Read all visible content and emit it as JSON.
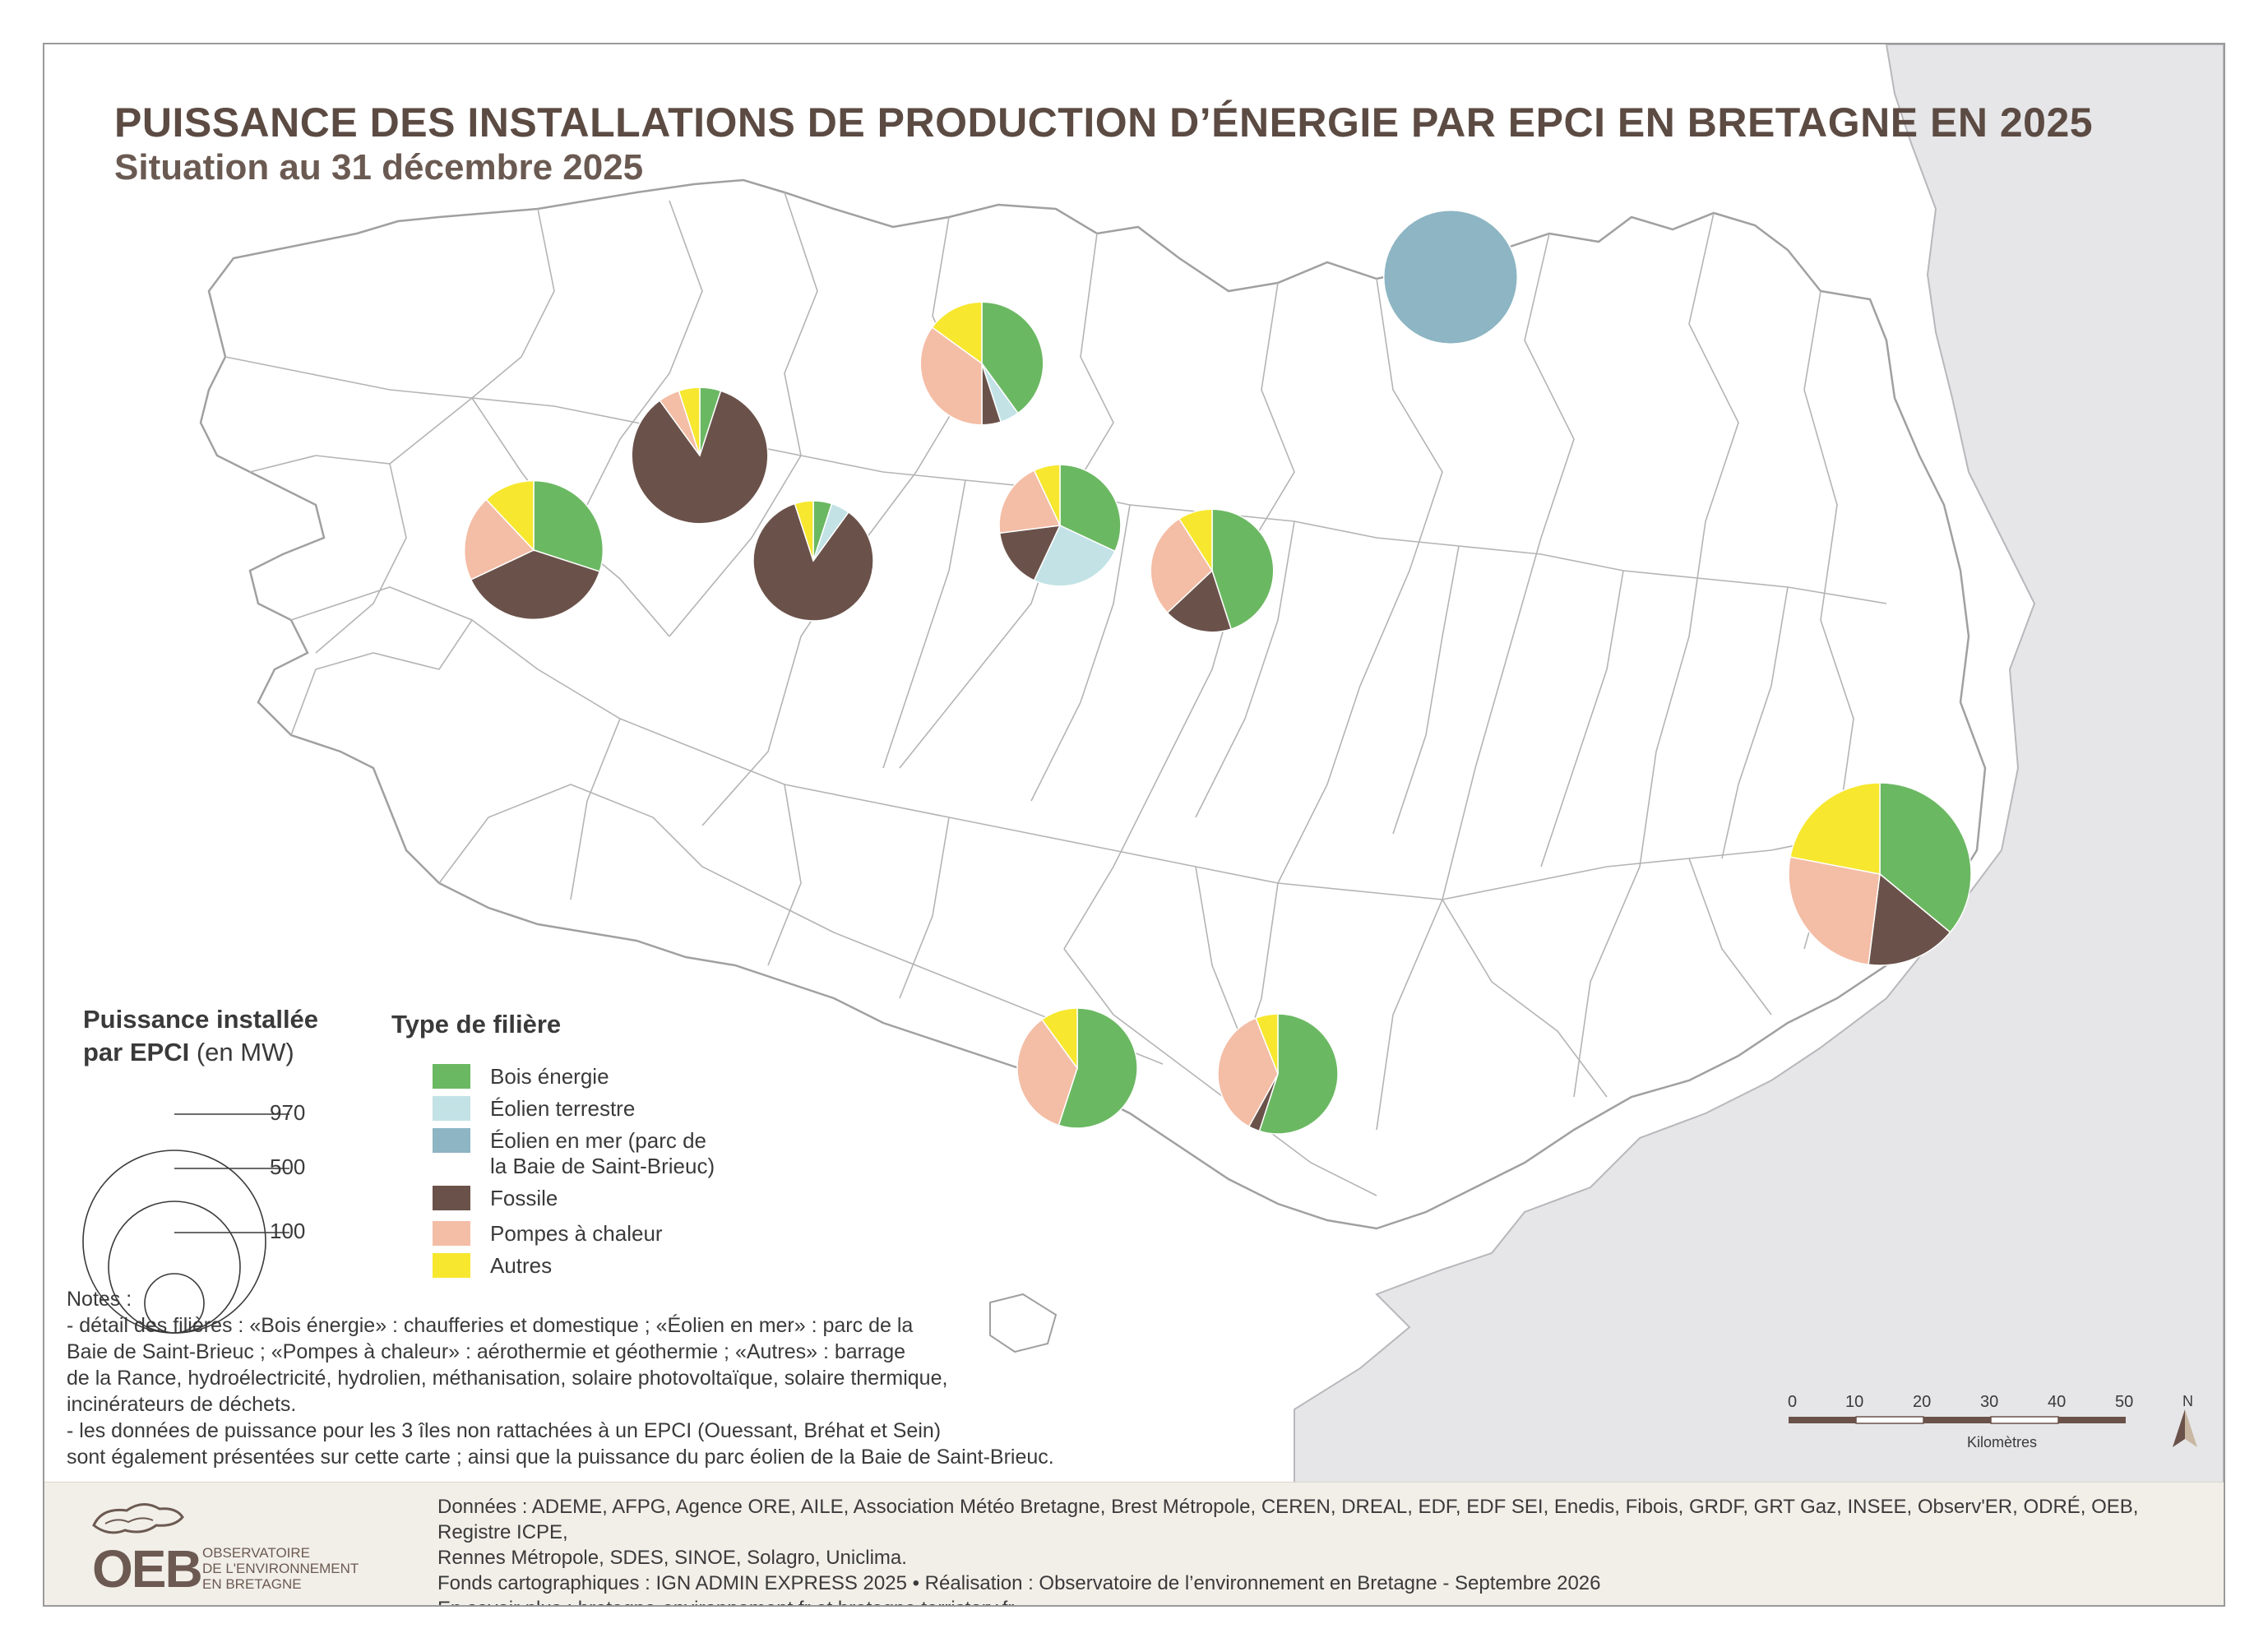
{
  "title": "PUISSANCE DES INSTALLATIONS DE PRODUCTION D’ÉNERGIE PAR EPCI EN BRETAGNE EN 2025",
  "subtitle": "Situation au 31 décembre 2025",
  "legend": {
    "size_title_line1": "Puissance installée",
    "size_title_line2_bold": "par EPCI",
    "size_title_line2_unit": "(en MW)",
    "sizes": [
      {
        "value": 970,
        "label": "970"
      },
      {
        "value": 500,
        "label": "500"
      },
      {
        "value": 100,
        "label": "100"
      }
    ],
    "type_title": "Type de filière",
    "types": [
      {
        "key": "bois",
        "line1": "Bois énergie",
        "line2": "",
        "color": "#6bb862"
      },
      {
        "key": "eolien",
        "line1": "Éolien terrestre",
        "line2": "",
        "color": "#c2e2e6"
      },
      {
        "key": "mer",
        "line1": "Éolien en mer (parc de",
        "line2": "la Baie de Saint-Brieuc)",
        "color": "#8db5c3"
      },
      {
        "key": "fossile",
        "line1": "Fossile",
        "line2": "",
        "color": "#6a524a"
      },
      {
        "key": "pac",
        "line1": "Pompes à chaleur",
        "line2": "",
        "color": "#f4bda6"
      },
      {
        "key": "autres",
        "line1": "Autres",
        "line2": "",
        "color": "#f7e72f"
      }
    ]
  },
  "notes": [
    "Notes :",
    "- détail des filières : «Bois énergie» : chaufferies et domestique ; «Éolien en mer» : parc de la",
    "Baie de Saint-Brieuc ;  «Pompes à chaleur» : aérothermie et géothermie ; «Autres» : barrage",
    "de la Rance, hydroélectricité, hydrolien, méthanisation, solaire photovoltaïque, solaire thermique,",
    "incinérateurs de déchets.",
    "- les données de puissance pour les 3 îles non rattachées à un EPCI (Ouessant, Bréhat et Sein)",
    "sont également présentées sur cette carte ; ainsi que la puissance du parc éolien de la Baie de Saint-Brieuc."
  ],
  "sources": [
    "Données : ADEME, AFPG, Agence ORE, AILE, Association Météo Bretagne, Brest Métropole, CEREN, DREAL, EDF, EDF SEI, Enedis, Fibois, GRDF, GRT Gaz, INSEE, Observ'ER, ODRÉ, OEB, Registre ICPE,",
    "Rennes Métropole, SDES, SINOE, Solagro, Uniclima.",
    "Fonds cartographiques : IGN ADMIN EXPRESS 2025 • Réalisation : Observatoire de l’environnement en Bretagne - Septembre 2026",
    "En savoir plus : bretagne-environnement.fr et bretagne.terristory.fr"
  ],
  "logo": {
    "word": "OEB",
    "name_lines": [
      "OBSERVATOIRE",
      "DE L'ENVIRONNEMENT",
      "EN BRETAGNE"
    ]
  },
  "scale": {
    "ticks": [
      "0",
      "10",
      "20",
      "30",
      "40",
      "50"
    ],
    "unit": "Kilomètres",
    "north": "N"
  },
  "pies": [
    {
      "total": 970,
      "shares": {
        "bois": 0.36,
        "fossile": 0.16,
        "pac": 0.26,
        "autres": 0.22
      }
    },
    {
      "total": 520,
      "shares": {
        "mer": 1.0
      }
    },
    {
      "total": 560,
      "shares": {
        "bois": 0.3,
        "fossile": 0.38,
        "pac": 0.2,
        "autres": 0.12
      }
    },
    {
      "total": 540,
      "shares": {
        "fossile": 0.85,
        "pac": 0.05,
        "autres": 0.05,
        "bois": 0.05
      }
    },
    {
      "total": 420,
      "shares": {
        "fossile": 0.85,
        "eolien": 0.05,
        "bois": 0.05,
        "autres": 0.05
      }
    },
    {
      "total": 440,
      "shares": {
        "bois": 0.45,
        "fossile": 0.18,
        "pac": 0.28,
        "autres": 0.09
      }
    },
    {
      "total": 430,
      "shares": {
        "bois": 0.32,
        "eolien": 0.25,
        "fossile": 0.16,
        "pac": 0.2,
        "autres": 0.07
      }
    },
    {
      "total": 420,
      "shares": {
        "bois": 0.55,
        "pac": 0.35,
        "autres": 0.1
      }
    },
    {
      "total": 420,
      "shares": {
        "bois": 0.55,
        "fossile": 0.03,
        "pac": 0.36,
        "autres": 0.06
      }
    },
    {
      "total": 440,
      "shares": {
        "bois": 0.4,
        "eolien": 0.05,
        "fossile": 0.05,
        "pac": 0.35,
        "autres": 0.15
      }
    }
  ]
}
